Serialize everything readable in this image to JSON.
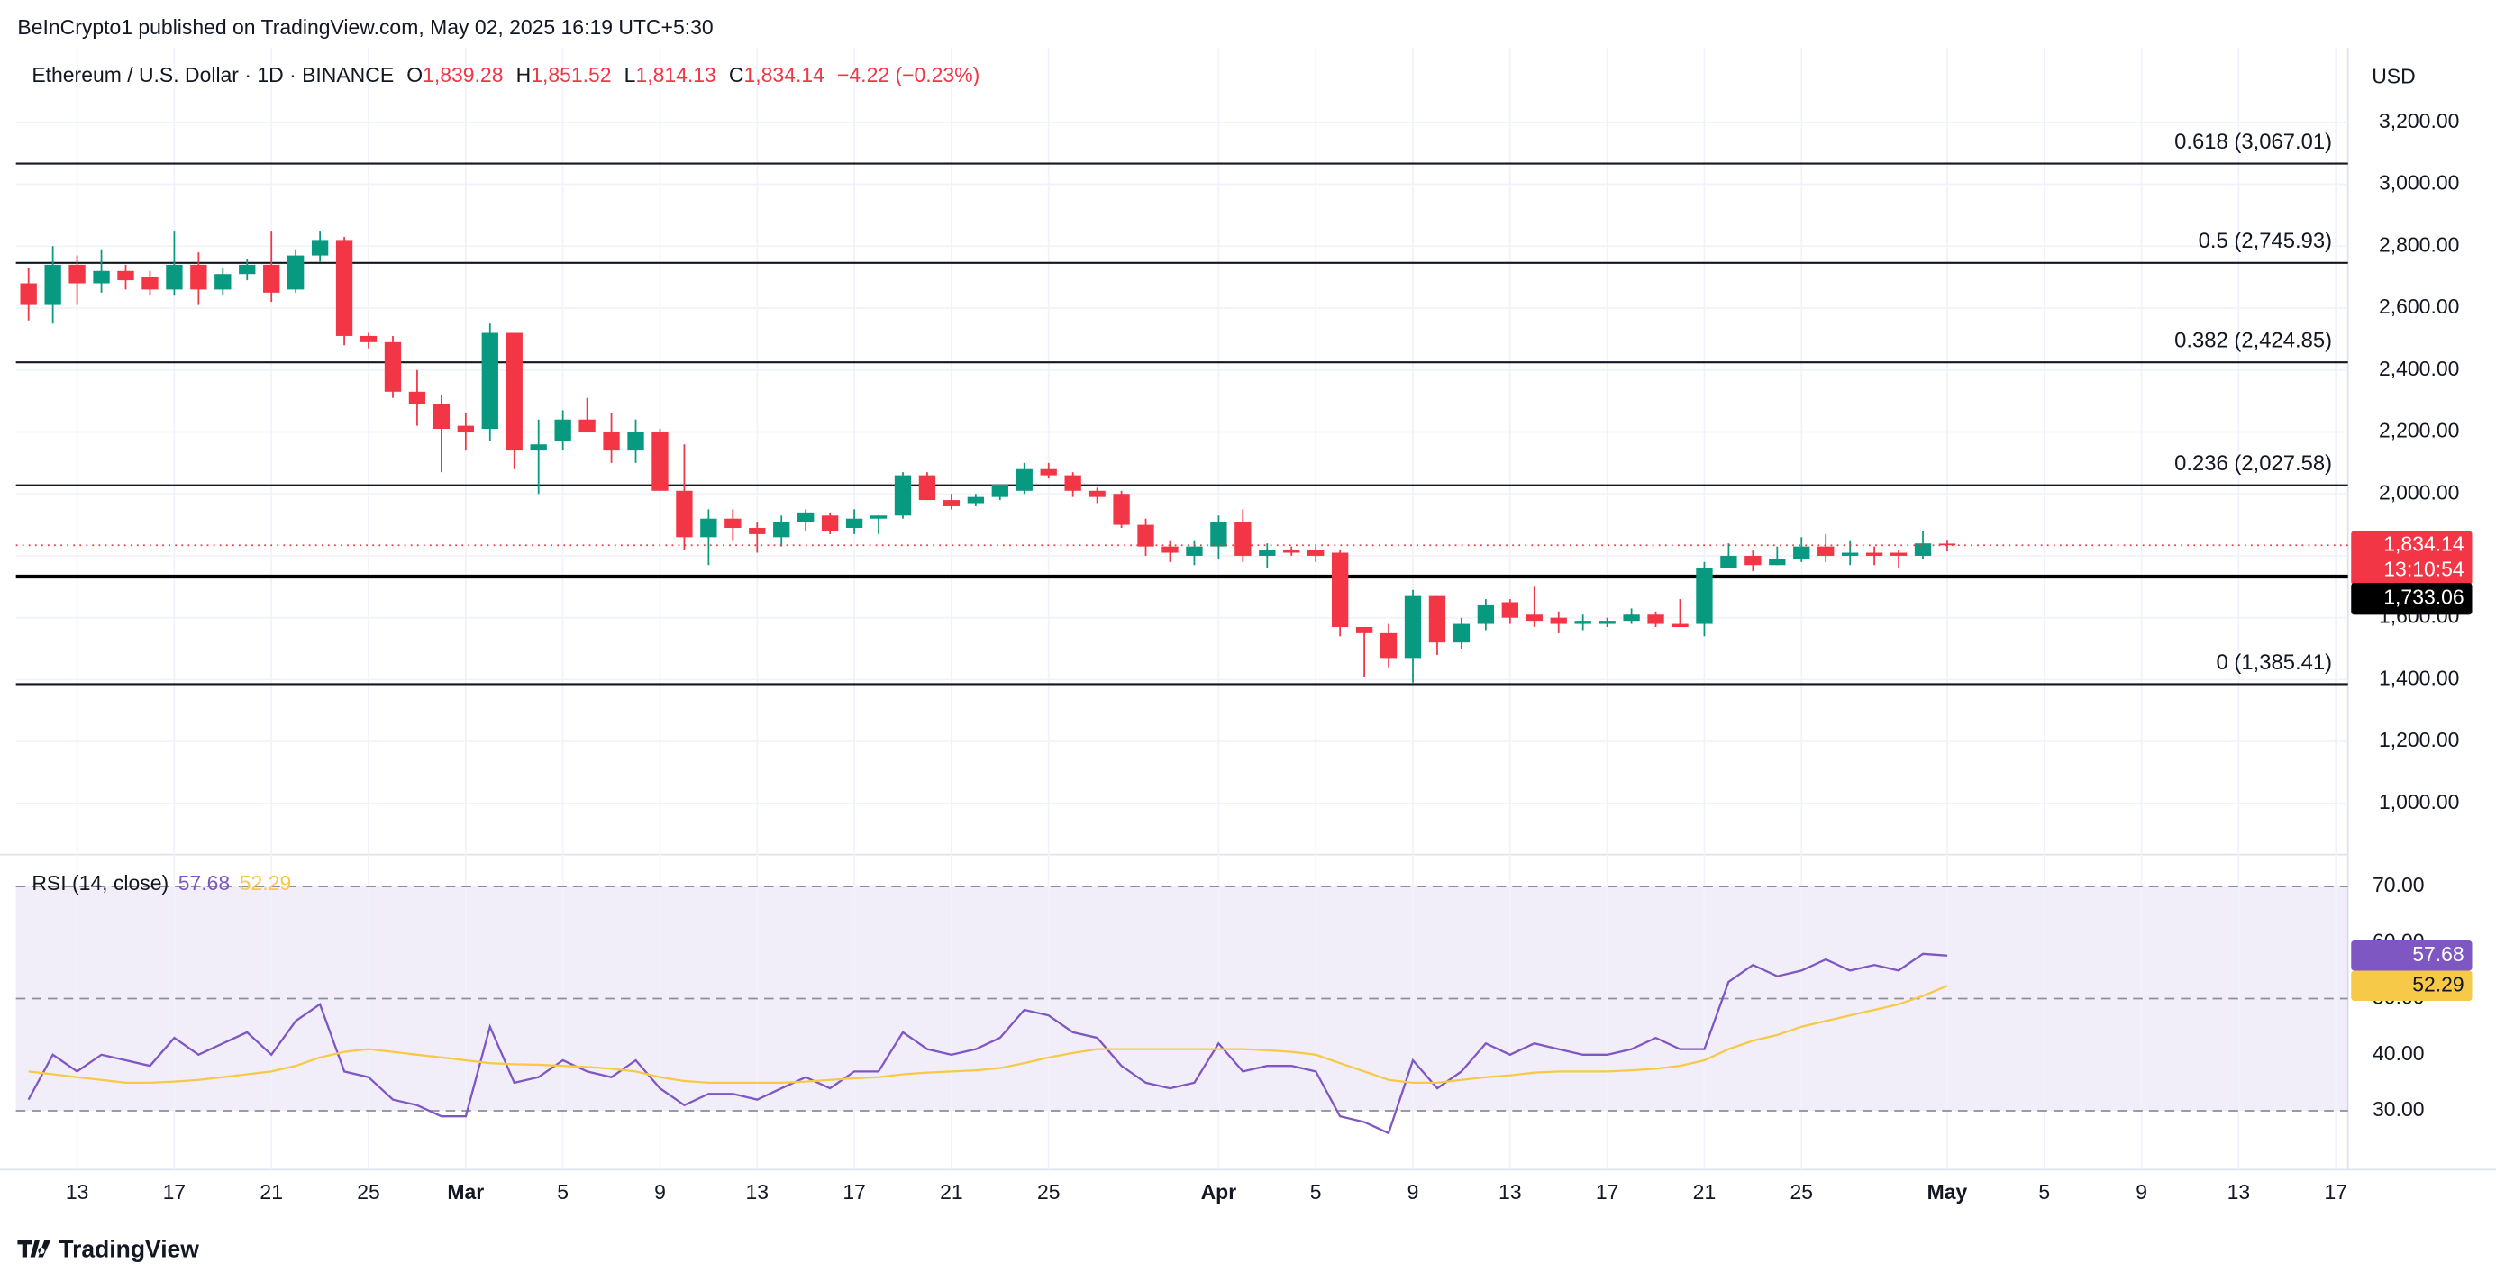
{
  "header": {
    "publisher": "BeInCrypto1 published on TradingView.com, May 02, 2025 16:19 UTC+5:30",
    "footer": "TradingView"
  },
  "chart_data": [
    {
      "type": "candlestick",
      "title": "Ethereum / U.S. Dollar · 1D · BINANCE",
      "legend": [
        {
          "key": "O",
          "value": "1,839.28"
        },
        {
          "key": "H",
          "value": "1,851.52"
        },
        {
          "key": "L",
          "value": "1,814.13"
        },
        {
          "key": "C",
          "value": "1,834.14"
        }
      ],
      "change": "−4.22 (−0.23%)",
      "currency": "USD",
      "up_color": "#089981",
      "down_color": "#f23645",
      "open": [
        2680,
        2610,
        2740,
        2680,
        2720,
        2700,
        2660,
        2740,
        2660,
        2710,
        2740,
        2660,
        2770,
        2820,
        2510,
        2490,
        2330,
        2290,
        2220,
        2210,
        2520,
        2140,
        2170,
        2240,
        2200,
        2140,
        2200,
        2010,
        1860,
        1920,
        1890,
        1860,
        1910,
        1930,
        1890,
        1920,
        1930,
        2060,
        1980,
        1970,
        1990,
        2010,
        2080,
        2060,
        2010,
        2000,
        1900,
        1830,
        1800,
        1830,
        1910,
        1800,
        1820,
        1820,
        1810,
        1570,
        1550,
        1470,
        1670,
        1520,
        1580,
        1650,
        1610,
        1600,
        1580,
        1580,
        1590,
        1610,
        1580,
        1580,
        1760,
        1800,
        1770,
        1790,
        1830,
        1800,
        1810,
        1810,
        1800,
        1839.28
      ],
      "high": [
        2730,
        2800,
        2770,
        2790,
        2740,
        2720,
        2850,
        2780,
        2730,
        2760,
        2850,
        2790,
        2850,
        2830,
        2520,
        2510,
        2400,
        2320,
        2260,
        2550,
        2520,
        2240,
        2270,
        2310,
        2260,
        2240,
        2210,
        2160,
        1950,
        1950,
        1910,
        1930,
        1950,
        1940,
        1950,
        1930,
        2070,
        2070,
        2000,
        2000,
        2030,
        2100,
        2100,
        2070,
        2020,
        2010,
        1920,
        1850,
        1850,
        1930,
        1950,
        1840,
        1830,
        1830,
        1820,
        1570,
        1580,
        1690,
        1670,
        1600,
        1660,
        1660,
        1700,
        1620,
        1610,
        1600,
        1630,
        1620,
        1660,
        1780,
        1840,
        1820,
        1830,
        1860,
        1870,
        1850,
        1830,
        1820,
        1880,
        1851.52
      ],
      "low": [
        2560,
        2550,
        2610,
        2650,
        2660,
        2640,
        2640,
        2610,
        2640,
        2690,
        2620,
        2650,
        2750,
        2480,
        2470,
        2310,
        2220,
        2070,
        2140,
        2170,
        2080,
        2000,
        2140,
        2200,
        2100,
        2100,
        2010,
        1820,
        1770,
        1850,
        1810,
        1830,
        1880,
        1870,
        1870,
        1870,
        1920,
        1980,
        1950,
        1960,
        1980,
        2000,
        2050,
        1990,
        1970,
        1890,
        1800,
        1780,
        1770,
        1790,
        1780,
        1760,
        1800,
        1780,
        1540,
        1410,
        1440,
        1390,
        1480,
        1500,
        1560,
        1580,
        1570,
        1550,
        1560,
        1570,
        1580,
        1570,
        1570,
        1540,
        1760,
        1750,
        1770,
        1780,
        1780,
        1770,
        1770,
        1760,
        1790,
        1814.13
      ],
      "close": [
        2610,
        2740,
        2680,
        2720,
        2690,
        2660,
        2740,
        2660,
        2710,
        2740,
        2650,
        2770,
        2820,
        2510,
        2490,
        2330,
        2290,
        2210,
        2200,
        2520,
        2140,
        2160,
        2240,
        2200,
        2140,
        2200,
        2010,
        1860,
        1920,
        1890,
        1870,
        1910,
        1940,
        1880,
        1920,
        1930,
        2060,
        1980,
        1960,
        1990,
        2030,
        2080,
        2060,
        2010,
        1990,
        1900,
        1830,
        1810,
        1830,
        1910,
        1800,
        1820,
        1810,
        1800,
        1570,
        1550,
        1470,
        1670,
        1520,
        1580,
        1640,
        1600,
        1590,
        1580,
        1590,
        1590,
        1610,
        1580,
        1570,
        1760,
        1800,
        1770,
        1790,
        1830,
        1800,
        1810,
        1800,
        1800,
        1840,
        1834.14
      ],
      "ylim": [
        835,
        3441
      ],
      "yticks": [
        {
          "value": 1000,
          "label": "1,000.00"
        },
        {
          "value": 1200,
          "label": "1,200.00"
        },
        {
          "value": 1400,
          "label": "1,400.00"
        },
        {
          "value": 1600,
          "label": "1,600.00"
        },
        {
          "value": 1800,
          "label": "1,800.00"
        },
        {
          "value": 2000,
          "label": "2,000.00"
        },
        {
          "value": 2200,
          "label": "2,200.00"
        },
        {
          "value": 2400,
          "label": "2,400.00"
        },
        {
          "value": 2600,
          "label": "2,600.00"
        },
        {
          "value": 2800,
          "label": "2,800.00"
        },
        {
          "value": 3000,
          "label": "3,000.00"
        },
        {
          "value": 3200,
          "label": "3,200.00"
        }
      ],
      "xlim": [
        -0.52,
        95.5
      ],
      "xticks": [
        {
          "value": 2,
          "label": "13"
        },
        {
          "value": 6,
          "label": "17"
        },
        {
          "value": 10,
          "label": "21"
        },
        {
          "value": 14,
          "label": "25"
        },
        {
          "value": 18,
          "label": "Mar"
        },
        {
          "value": 22,
          "label": "5"
        },
        {
          "value": 26,
          "label": "9"
        },
        {
          "value": 30,
          "label": "13"
        },
        {
          "value": 34,
          "label": "17"
        },
        {
          "value": 38,
          "label": "21"
        },
        {
          "value": 42,
          "label": "25"
        },
        {
          "value": 49,
          "label": "Apr"
        },
        {
          "value": 53,
          "label": "5"
        },
        {
          "value": 57,
          "label": "9"
        },
        {
          "value": 61,
          "label": "13"
        },
        {
          "value": 65,
          "label": "17"
        },
        {
          "value": 69,
          "label": "21"
        },
        {
          "value": 73,
          "label": "25"
        },
        {
          "value": 79,
          "label": "May"
        },
        {
          "value": 83,
          "label": "5"
        },
        {
          "value": 87,
          "label": "9"
        },
        {
          "value": 91,
          "label": "13"
        },
        {
          "value": 95,
          "label": "17"
        }
      ],
      "fib_levels": [
        {
          "value": 3067.01,
          "label": "0.618 (3,067.01)"
        },
        {
          "value": 2745.93,
          "label": "0.5 (2,745.93)"
        },
        {
          "value": 2424.85,
          "label": "0.382 (2,424.85)"
        },
        {
          "value": 2027.58,
          "label": "0.236 (2,027.58)"
        },
        {
          "value": 1385.41,
          "label": "0 (1,385.41)"
        }
      ],
      "support": {
        "value": 1733.06,
        "label": "1,733.06"
      },
      "last_price_label": "1,834.14",
      "countdown": "13:10:54"
    },
    {
      "type": "line",
      "title": "RSI (14, close)",
      "series": [
        {
          "color": "#7e57c2",
          "value_label": "57.68",
          "values": [
            32,
            40,
            37,
            40,
            39,
            38,
            43,
            40,
            42,
            44,
            40,
            46,
            49,
            37,
            36,
            32,
            31,
            29,
            29,
            45,
            35,
            36,
            39,
            37,
            36,
            39,
            34,
            31,
            33,
            33,
            32,
            34,
            36,
            34,
            37,
            37,
            44,
            41,
            40,
            41,
            43,
            48,
            47,
            44,
            43,
            38,
            35,
            34,
            35,
            42,
            37,
            38,
            38,
            37,
            29,
            28,
            26,
            39,
            34,
            37,
            42,
            40,
            42,
            41,
            40,
            40,
            41,
            43,
            41,
            41,
            53,
            56,
            54,
            55,
            57,
            55,
            56,
            55,
            58,
            57.68
          ]
        },
        {
          "color": "#f7c948",
          "value_label": "52.29",
          "values": [
            37,
            36.5,
            36,
            35.5,
            35,
            35,
            35.2,
            35.5,
            36,
            36.5,
            37,
            38,
            39.5,
            40.5,
            41,
            40.5,
            40,
            39.5,
            39,
            38.5,
            38.3,
            38.2,
            38,
            37.8,
            37.5,
            37,
            36,
            35.3,
            35,
            35,
            35,
            35,
            35.2,
            35.5,
            35.8,
            36,
            36.5,
            36.8,
            37,
            37.2,
            37.6,
            38.5,
            39.5,
            40.3,
            41,
            41,
            41,
            41,
            41,
            41,
            41,
            40.8,
            40.5,
            40,
            38.5,
            37,
            35.5,
            35,
            35,
            35.5,
            36,
            36.3,
            36.8,
            37,
            37,
            37,
            37.2,
            37.5,
            38,
            39,
            41,
            42.5,
            43.5,
            45,
            46,
            47,
            48,
            49,
            50.5,
            52.29
          ]
        }
      ],
      "ylim": [
        19.5,
        75.7
      ],
      "yticks": [
        {
          "value": 30,
          "label": "30.00"
        },
        {
          "value": 40,
          "label": "40.00"
        },
        {
          "value": 50,
          "label": "50.00"
        },
        {
          "value": 60,
          "label": "60.00"
        },
        {
          "value": 70,
          "label": "70.00"
        }
      ],
      "band": [
        30,
        70
      ],
      "midline": 50
    }
  ]
}
